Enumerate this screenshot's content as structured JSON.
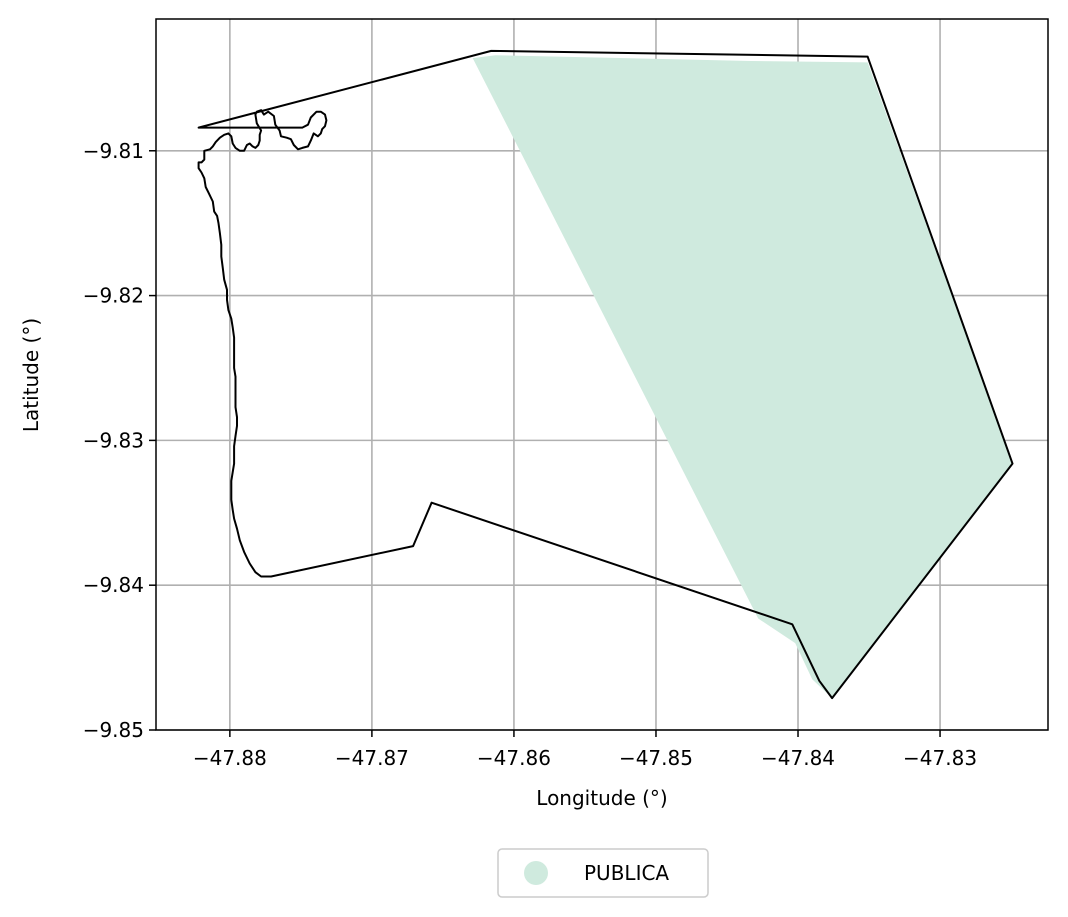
{
  "chart_data": {
    "type": "map",
    "xlabel": "Longitude (°)",
    "ylabel": "Latitude (°)",
    "xlim": [
      -47.8852,
      -47.8224
    ],
    "ylim": [
      -9.85,
      -9.8009
    ],
    "grid": true,
    "x_ticks": [
      {
        "value": -47.88,
        "label": "−47.88"
      },
      {
        "value": -47.87,
        "label": "−47.87"
      },
      {
        "value": -47.86,
        "label": "−47.86"
      },
      {
        "value": -47.85,
        "label": "−47.85"
      },
      {
        "value": -47.84,
        "label": "−47.84"
      },
      {
        "value": -47.83,
        "label": "−47.83"
      }
    ],
    "y_ticks": [
      {
        "value": -9.81,
        "label": "−9.81"
      },
      {
        "value": -9.82,
        "label": "−9.82"
      },
      {
        "value": -9.83,
        "label": "−9.83"
      },
      {
        "value": -9.84,
        "label": "−9.84"
      },
      {
        "value": -9.85,
        "label": "−9.85"
      }
    ],
    "legend": {
      "placement": "bottom-center",
      "entries": [
        {
          "label": "PUBLICA",
          "color": "#cfeade"
        }
      ]
    },
    "areas": [
      {
        "name": "PUBLICA",
        "color": "#cfeade",
        "coords": [
          [
            -47.8629,
            -9.8036
          ],
          [
            -47.8613,
            -9.8034
          ],
          [
            -47.8433,
            -9.8038
          ],
          [
            -47.8351,
            -9.8039
          ],
          [
            -47.8249,
            -9.8316
          ],
          [
            -47.8376,
            -9.8478
          ],
          [
            -47.839,
            -9.8465
          ],
          [
            -47.8402,
            -9.844
          ],
          [
            -47.8428,
            -9.8423
          ]
        ]
      }
    ],
    "boundary": {
      "color": "#000000",
      "coords": [
        [
          -47.8616,
          -9.8031
        ],
        [
          -47.8351,
          -9.8035
        ],
        [
          -47.8249,
          -9.8316
        ],
        [
          -47.8376,
          -9.8478
        ],
        [
          -47.8385,
          -9.8466
        ],
        [
          -47.8404,
          -9.8427
        ],
        [
          -47.8658,
          -9.8343
        ],
        [
          -47.8671,
          -9.8373
        ],
        [
          -47.8771,
          -9.8394
        ],
        [
          -47.8778,
          -9.8394
        ],
        [
          -47.8782,
          -9.8391
        ],
        [
          -47.8786,
          -9.8385
        ],
        [
          -47.879,
          -9.8377
        ],
        [
          -47.8793,
          -9.8369
        ],
        [
          -47.8795,
          -9.8361
        ],
        [
          -47.8797,
          -9.8354
        ],
        [
          -47.8798,
          -9.8348
        ],
        [
          -47.8799,
          -9.8341
        ],
        [
          -47.8799,
          -9.8335
        ],
        [
          -47.8799,
          -9.8328
        ],
        [
          -47.8798,
          -9.8322
        ],
        [
          -47.8797,
          -9.8316
        ],
        [
          -47.8797,
          -9.831
        ],
        [
          -47.8797,
          -9.8304
        ],
        [
          -47.8796,
          -9.8297
        ],
        [
          -47.8795,
          -9.829
        ],
        [
          -47.8795,
          -9.8284
        ],
        [
          -47.8796,
          -9.8277
        ],
        [
          -47.8796,
          -9.827
        ],
        [
          -47.8796,
          -9.8263
        ],
        [
          -47.8796,
          -9.8256
        ],
        [
          -47.8797,
          -9.825
        ],
        [
          -47.8797,
          -9.8243
        ],
        [
          -47.8797,
          -9.8236
        ],
        [
          -47.8797,
          -9.8229
        ],
        [
          -47.8798,
          -9.8222
        ],
        [
          -47.8799,
          -9.8216
        ],
        [
          -47.8801,
          -9.821
        ],
        [
          -47.8802,
          -9.8203
        ],
        [
          -47.8802,
          -9.8196
        ],
        [
          -47.8804,
          -9.8189
        ],
        [
          -47.8805,
          -9.8181
        ],
        [
          -47.8806,
          -9.8173
        ],
        [
          -47.8806,
          -9.8165
        ],
        [
          -47.8807,
          -9.8157
        ],
        [
          -47.8808,
          -9.815
        ],
        [
          -47.8809,
          -9.8145
        ],
        [
          -47.8811,
          -9.8142
        ],
        [
          -47.8812,
          -9.8135
        ],
        [
          -47.8815,
          -9.8129
        ],
        [
          -47.8817,
          -9.8125
        ],
        [
          -47.8818,
          -9.8119
        ],
        [
          -47.882,
          -9.8115
        ],
        [
          -47.8822,
          -9.8112
        ],
        [
          -47.8822,
          -9.8108
        ],
        [
          -47.882,
          -9.8108
        ],
        [
          -47.8818,
          -9.8106
        ],
        [
          -47.8818,
          -9.8103
        ],
        [
          -47.8818,
          -9.81
        ],
        [
          -47.8814,
          -9.8099
        ],
        [
          -47.8812,
          -9.8097
        ],
        [
          -47.881,
          -9.8094
        ],
        [
          -47.8807,
          -9.8091
        ],
        [
          -47.8804,
          -9.8089
        ],
        [
          -47.8801,
          -9.8088
        ],
        [
          -47.8799,
          -9.809
        ],
        [
          -47.8798,
          -9.8095
        ],
        [
          -47.8796,
          -9.8098
        ],
        [
          -47.8793,
          -9.81
        ],
        [
          -47.879,
          -9.81
        ],
        [
          -47.8788,
          -9.8096
        ],
        [
          -47.8786,
          -9.8095
        ],
        [
          -47.8784,
          -9.8097
        ],
        [
          -47.8782,
          -9.8098
        ],
        [
          -47.878,
          -9.8096
        ],
        [
          -47.8779,
          -9.8093
        ],
        [
          -47.8779,
          -9.8089
        ],
        [
          -47.8778,
          -9.8086
        ],
        [
          -47.8781,
          -9.8081
        ],
        [
          -47.8782,
          -9.8075
        ],
        [
          -47.8781,
          -9.8073
        ],
        [
          -47.8778,
          -9.8072
        ],
        [
          -47.8776,
          -9.8075
        ],
        [
          -47.8773,
          -9.8073
        ],
        [
          -47.8769,
          -9.8076
        ],
        [
          -47.8768,
          -9.8082
        ],
        [
          -47.8765,
          -9.8086
        ],
        [
          -47.8764,
          -9.809
        ],
        [
          -47.876,
          -9.8091
        ],
        [
          -47.8757,
          -9.8092
        ],
        [
          -47.8755,
          -9.8096
        ],
        [
          -47.8752,
          -9.8099
        ],
        [
          -47.8749,
          -9.8098
        ],
        [
          -47.8745,
          -9.8097
        ],
        [
          -47.8743,
          -9.8093
        ],
        [
          -47.8741,
          -9.8088
        ],
        [
          -47.8738,
          -9.809
        ],
        [
          -47.8736,
          -9.8088
        ],
        [
          -47.8735,
          -9.8085
        ],
        [
          -47.8733,
          -9.8083
        ],
        [
          -47.8732,
          -9.8079
        ],
        [
          -47.8733,
          -9.8075
        ],
        [
          -47.8736,
          -9.8073
        ],
        [
          -47.8739,
          -9.8073
        ],
        [
          -47.8743,
          -9.8077
        ],
        [
          -47.8745,
          -9.8082
        ],
        [
          -47.8749,
          -9.8084
        ],
        [
          -47.8754,
          -9.8084
        ],
        [
          -47.8822,
          -9.8084
        ],
        [
          -47.8616,
          -9.8031
        ]
      ]
    }
  }
}
